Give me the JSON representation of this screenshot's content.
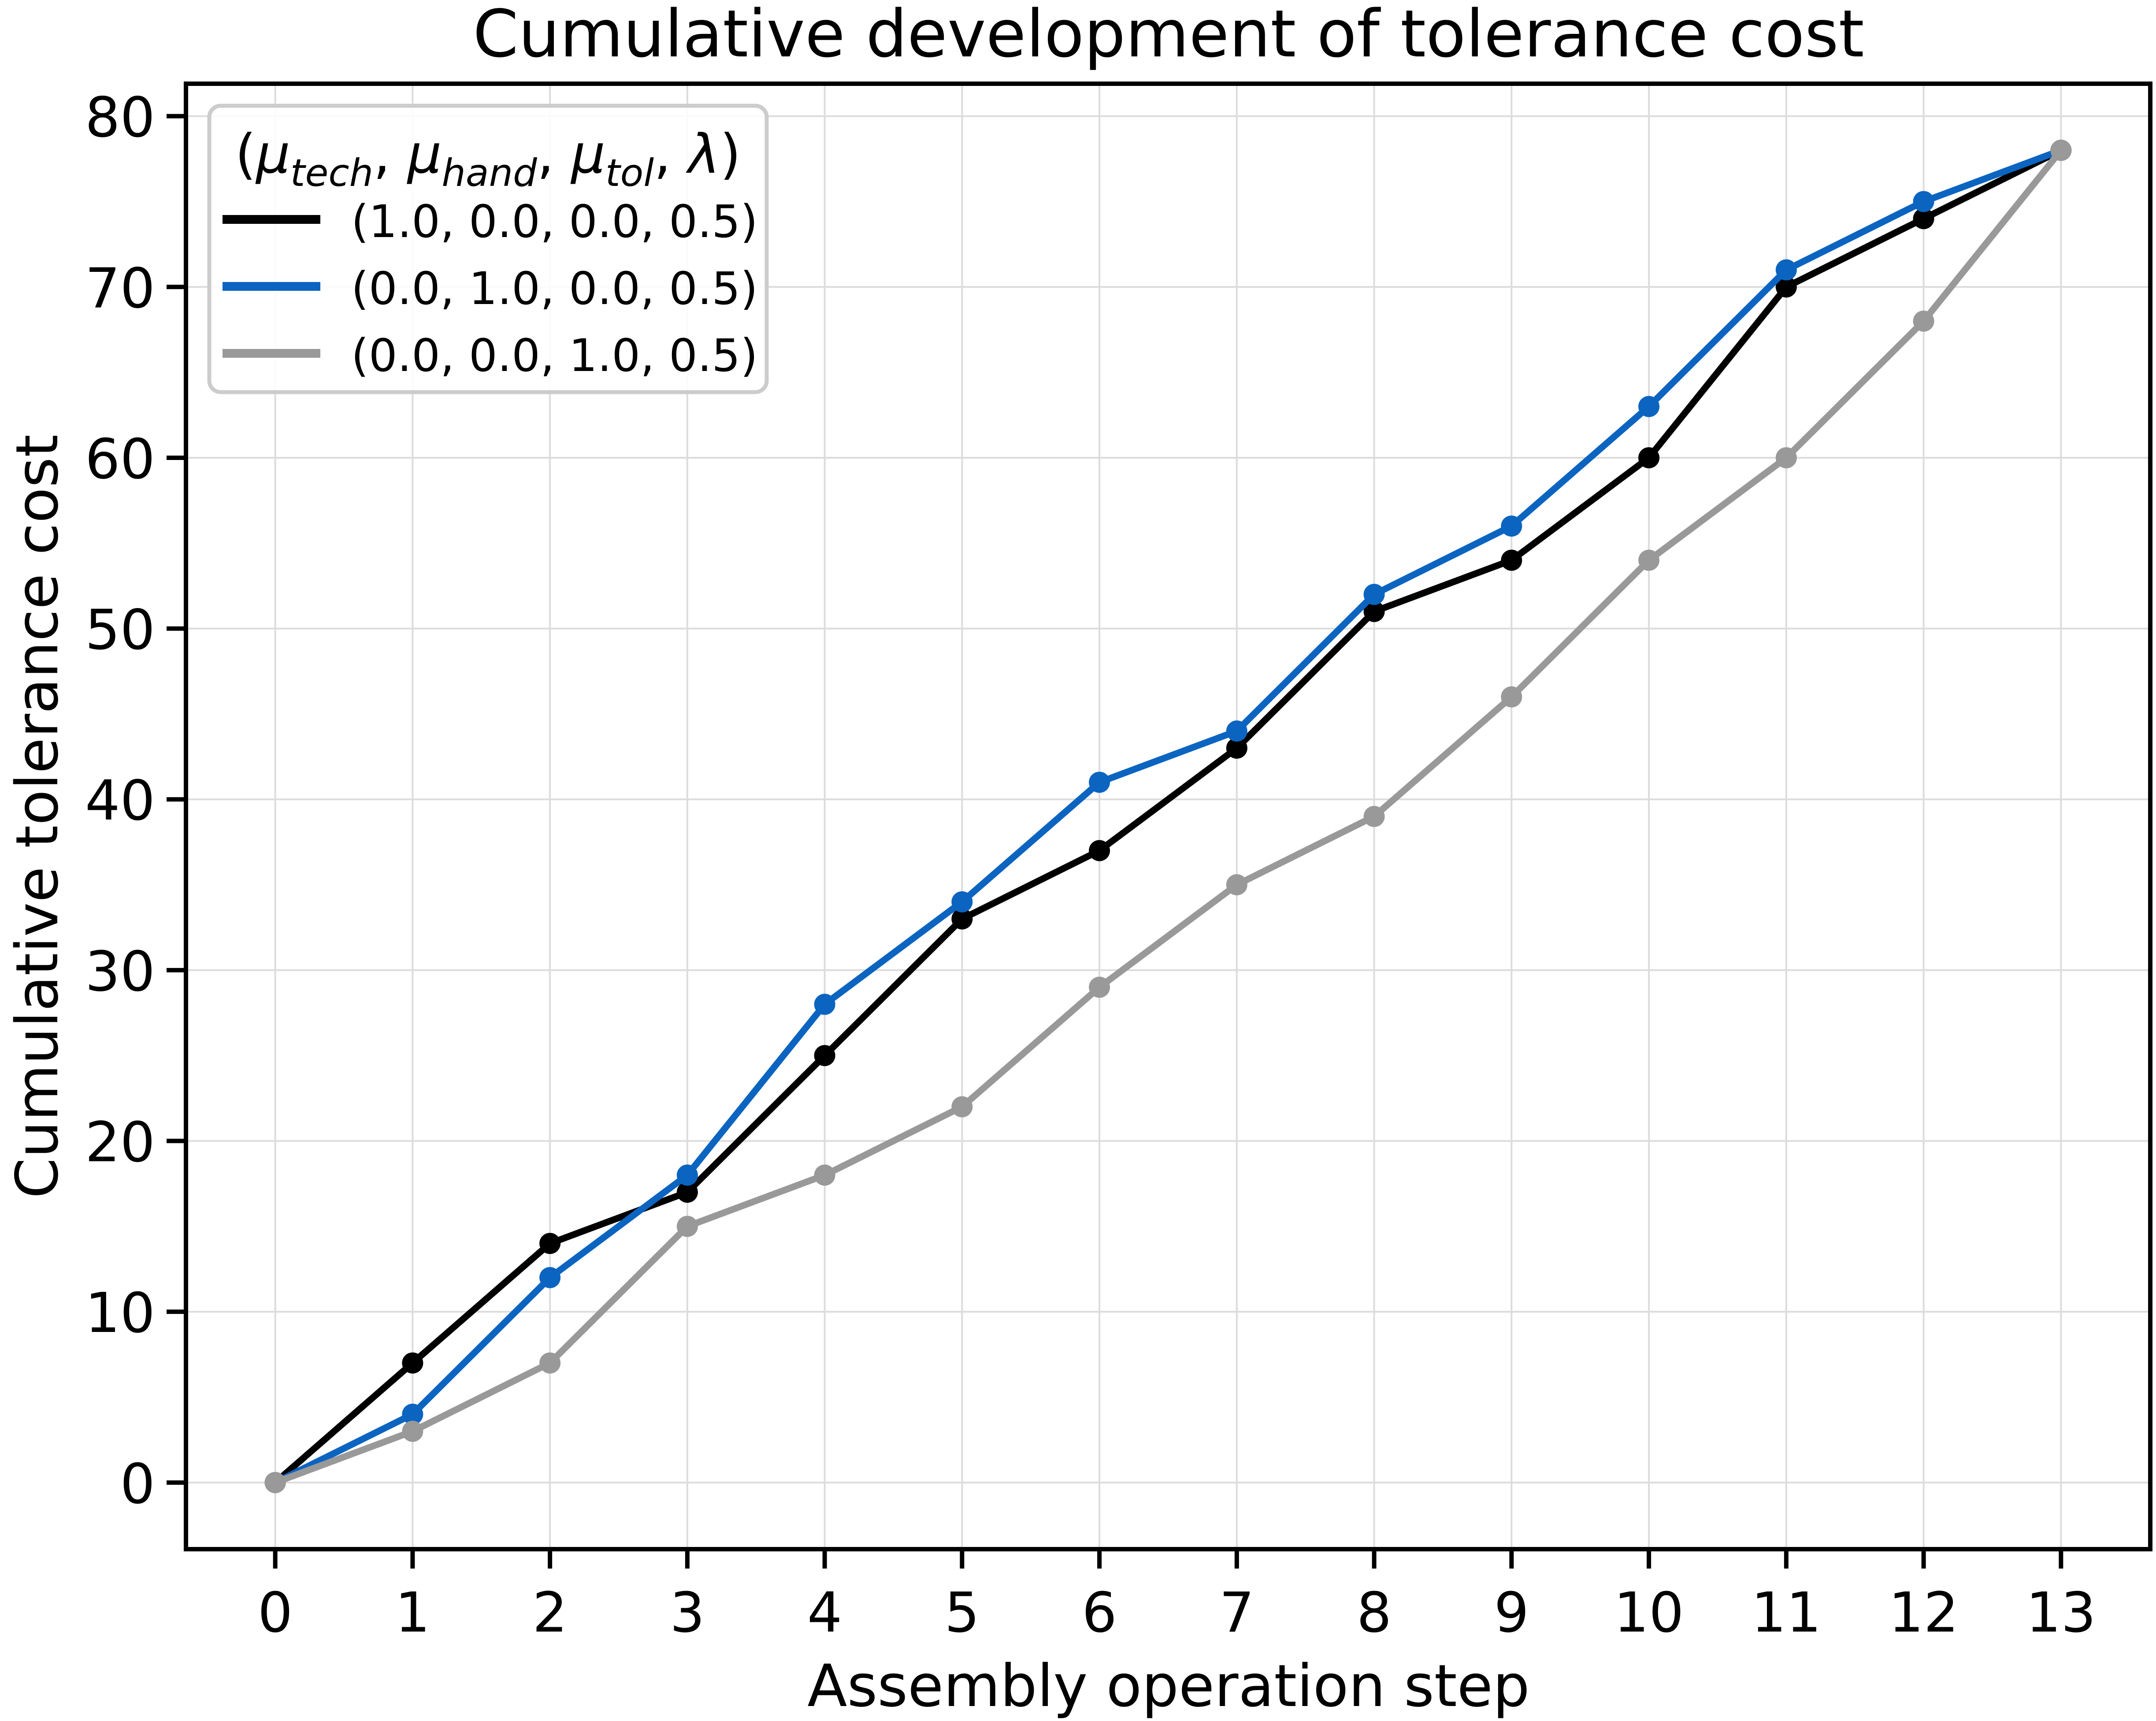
{
  "chart_data": {
    "type": "line",
    "title": "Cumulative development of tolerance cost",
    "xlabel": "Assembly operation step",
    "ylabel": "Cumulative tolerance cost",
    "grid": true,
    "x": [
      0,
      1,
      2,
      3,
      4,
      5,
      6,
      7,
      8,
      9,
      10,
      11,
      12,
      13
    ],
    "xlim": [
      -0.65,
      13.65
    ],
    "ylim": [
      -3.9,
      81.9
    ],
    "xticks": [
      0,
      1,
      2,
      3,
      4,
      5,
      6,
      7,
      8,
      9,
      10,
      11,
      12,
      13
    ],
    "yticks": [
      0,
      10,
      20,
      30,
      40,
      50,
      60,
      70,
      80
    ],
    "xtick_labels": [
      "0",
      "1",
      "2",
      "3",
      "4",
      "5",
      "6",
      "7",
      "8",
      "9",
      "10",
      "11",
      "12",
      "13"
    ],
    "ytick_labels": [
      "0",
      "10",
      "20",
      "30",
      "40",
      "50",
      "60",
      "70",
      "80"
    ],
    "series": [
      {
        "name": "(1.0, 0.0, 0.0, 0.5)",
        "color": "#000000",
        "values": [
          0,
          7,
          14,
          17,
          25,
          33,
          37,
          43,
          51,
          54,
          60,
          70,
          74,
          78
        ]
      },
      {
        "name": "(0.0, 1.0, 0.0, 0.5)",
        "color": "#0b64c0",
        "values": [
          0,
          4,
          12,
          18,
          28,
          34,
          41,
          44,
          52,
          56,
          63,
          71,
          75,
          78
        ]
      },
      {
        "name": "(0.0, 0.0, 1.0, 0.5)",
        "color": "#999999",
        "values": [
          0,
          3,
          7,
          15,
          18,
          22,
          29,
          35,
          39,
          46,
          54,
          60,
          68,
          78
        ]
      }
    ],
    "legend": {
      "position": "upper left",
      "title_plain": "(μtech, μhand, μtol, λ)",
      "title_segments": [
        {
          "text": "(",
          "style": "normal"
        },
        {
          "text": "μ",
          "style": "italic"
        },
        {
          "text": "tech",
          "style": "sub"
        },
        {
          "text": ", ",
          "style": "normal"
        },
        {
          "text": "μ",
          "style": "italic"
        },
        {
          "text": "hand",
          "style": "sub"
        },
        {
          "text": ", ",
          "style": "normal"
        },
        {
          "text": "μ",
          "style": "italic"
        },
        {
          "text": "tol",
          "style": "sub"
        },
        {
          "text": ", ",
          "style": "normal"
        },
        {
          "text": "λ",
          "style": "italic"
        },
        {
          "text": ")",
          "style": "normal"
        }
      ],
      "entries": [
        {
          "label": "(1.0, 0.0, 0.0, 0.5)",
          "color": "#000000"
        },
        {
          "label": "(0.0, 1.0, 0.0, 0.5)",
          "color": "#0b64c0"
        },
        {
          "label": "(0.0, 0.0, 1.0, 0.5)",
          "color": "#999999"
        }
      ]
    },
    "style": {
      "background": "#ffffff",
      "grid_color": "#dcdcdc",
      "spine_color": "#000000",
      "legend_border_color": "#cccccc",
      "legend_fill": "#ffffff",
      "text_color": "#000000"
    }
  }
}
